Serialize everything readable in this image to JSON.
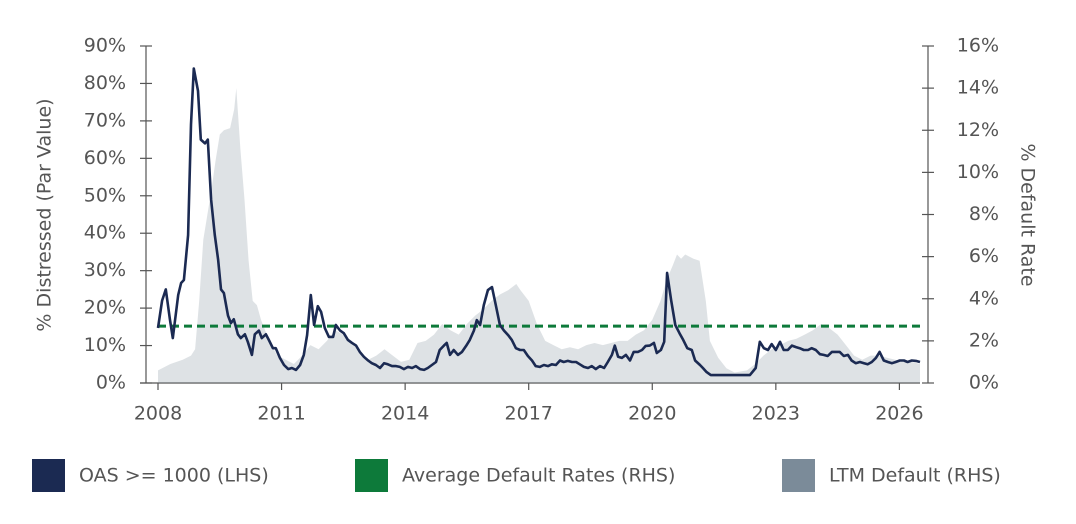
{
  "chart_data": {
    "type": "line",
    "ylabel": "% Distressed (Par Value)",
    "y2label": "% Default Rate",
    "xlim": [
      2008,
      2026.5
    ],
    "xticks": [
      2008,
      2011,
      2014,
      2017,
      2020,
      2023,
      2026
    ],
    "ylim": [
      0,
      90
    ],
    "yticks": [
      {
        "value": 0,
        "label": "0%"
      },
      {
        "value": 10,
        "label": "10%"
      },
      {
        "value": 20,
        "label": "20%"
      },
      {
        "value": 30,
        "label": "30%"
      },
      {
        "value": 40,
        "label": "40%"
      },
      {
        "value": 50,
        "label": "50%"
      },
      {
        "value": 60,
        "label": "60%"
      },
      {
        "value": 70,
        "label": "70%"
      },
      {
        "value": 80,
        "label": "80%"
      },
      {
        "value": 90,
        "label": "90%"
      }
    ],
    "y2lim": [
      0,
      16
    ],
    "y2ticks": [
      {
        "value": 0,
        "label": "0%"
      },
      {
        "value": 2,
        "label": "2%"
      },
      {
        "value": 4,
        "label": "4%"
      },
      {
        "value": 6,
        "label": "6%"
      },
      {
        "value": 8,
        "label": "8%"
      },
      {
        "value": 10,
        "label": "10%"
      },
      {
        "value": 12,
        "label": "12%"
      },
      {
        "value": 14,
        "label": "14%"
      },
      {
        "value": 16,
        "label": "16%"
      }
    ],
    "legend": "bottom",
    "series": [
      {
        "name": "OAS >= 1000 (LHS)",
        "color": "#1b2a52",
        "kind": "line",
        "x": [
          2008.0,
          2008.1,
          2008.19,
          2008.29,
          2008.36,
          2008.49,
          2008.56,
          2008.63,
          2008.73,
          2008.8,
          2008.87,
          2008.97,
          2009.04,
          2009.14,
          2009.21,
          2009.29,
          2009.38,
          2009.46,
          2009.53,
          2009.6,
          2009.7,
          2009.77,
          2009.84,
          2009.94,
          2010.01,
          2010.11,
          2010.18,
          2010.28,
          2010.35,
          2010.45,
          2010.52,
          2010.62,
          2010.69,
          2010.79,
          2010.86,
          2010.96,
          2011.06,
          2011.16,
          2011.25,
          2011.35,
          2011.45,
          2011.54,
          2011.62,
          2011.71,
          2011.79,
          2011.88,
          2011.96,
          2012.05,
          2012.15,
          2012.25,
          2012.32,
          2012.42,
          2012.51,
          2012.61,
          2012.71,
          2012.81,
          2012.9,
          2013.0,
          2013.1,
          2013.19,
          2013.29,
          2013.39,
          2013.49,
          2013.58,
          2013.68,
          2013.78,
          2013.87,
          2013.97,
          2014.07,
          2014.17,
          2014.26,
          2014.36,
          2014.46,
          2014.55,
          2014.65,
          2014.75,
          2014.84,
          2014.94,
          2015.01,
          2015.09,
          2015.18,
          2015.28,
          2015.38,
          2015.48,
          2015.57,
          2015.67,
          2015.74,
          2015.82,
          2015.91,
          2016.01,
          2016.11,
          2016.2,
          2016.3,
          2016.4,
          2016.5,
          2016.59,
          2016.69,
          2016.79,
          2016.88,
          2016.98,
          2017.08,
          2017.17,
          2017.27,
          2017.37,
          2017.47,
          2017.56,
          2017.66,
          2017.76,
          2017.85,
          2017.95,
          2018.05,
          2018.15,
          2018.24,
          2018.34,
          2018.44,
          2018.53,
          2018.63,
          2018.73,
          2018.83,
          2018.92,
          2019.02,
          2019.09,
          2019.17,
          2019.26,
          2019.36,
          2019.46,
          2019.55,
          2019.65,
          2019.75,
          2019.84,
          2019.94,
          2020.04,
          2020.11,
          2020.21,
          2020.29,
          2020.36,
          2020.46,
          2020.56,
          2020.66,
          2020.75,
          2020.85,
          2020.96,
          2021.04,
          2021.16,
          2021.23,
          2021.32,
          2021.42,
          2022.37,
          2022.51,
          2022.61,
          2022.71,
          2022.81,
          2022.9,
          2023.0,
          2023.1,
          2023.19,
          2023.29,
          2023.39,
          2023.49,
          2023.58,
          2023.68,
          2023.78,
          2023.87,
          2023.97,
          2024.07,
          2024.16,
          2024.26,
          2024.36,
          2024.46,
          2024.55,
          2024.65,
          2024.75,
          2024.84,
          2024.94,
          2025.04,
          2025.14,
          2025.23,
          2025.33,
          2025.43,
          2025.52,
          2025.62,
          2025.72,
          2025.82,
          2025.91,
          2026.01,
          2026.11,
          2026.2,
          2026.3,
          2026.4,
          2026.5
        ],
        "values": [
          14.7,
          22,
          25,
          17,
          12,
          23.5,
          26.7,
          27.5,
          39.5,
          69,
          84,
          78,
          65,
          64,
          65,
          49,
          39.5,
          33,
          25,
          24,
          18,
          16,
          17,
          13,
          12,
          13,
          11,
          7.5,
          13,
          14,
          12,
          13,
          11.5,
          9.3,
          9.3,
          6.7,
          4.8,
          3.7,
          4,
          3.5,
          4.8,
          7.5,
          12.8,
          23.5,
          15.5,
          20.5,
          19,
          14.7,
          12.3,
          12.3,
          15.5,
          14,
          13.3,
          11.5,
          10.7,
          10,
          8.3,
          7,
          6,
          5.3,
          4.8,
          4,
          5.3,
          5,
          4.5,
          4.5,
          4.3,
          3.7,
          4.3,
          4,
          4.5,
          3.7,
          3.5,
          4,
          4.8,
          5.6,
          8.8,
          10,
          10.7,
          7.5,
          8.8,
          7.5,
          8.3,
          9.9,
          11.5,
          14,
          16.8,
          15.5,
          20.8,
          24.8,
          25.6,
          20.8,
          15.5,
          14,
          12.8,
          11.5,
          9.3,
          8.8,
          8.8,
          7.2,
          6,
          4.5,
          4.3,
          4.8,
          4.5,
          5,
          4.8,
          6,
          5.6,
          5.9,
          5.6,
          5.6,
          5,
          4.3,
          4,
          4.5,
          3.7,
          4.5,
          4,
          5.6,
          7.5,
          10,
          7,
          6.7,
          7.5,
          6,
          8.3,
          8.3,
          8.8,
          9.9,
          10,
          10.7,
          8,
          8.8,
          11,
          29.4,
          22,
          15.5,
          13.3,
          11.5,
          9.3,
          8.8,
          6,
          4.8,
          4,
          2.9,
          2.1,
          2.1,
          4,
          11,
          9.3,
          8.8,
          10.4,
          8.8,
          11,
          8.8,
          8.8,
          10,
          9.6,
          9.3,
          8.8,
          8.8,
          9.3,
          8.8,
          7.7,
          7.5,
          7.2,
          8.3,
          8.3,
          8.3,
          7.2,
          7.5,
          6,
          5.3,
          5.6,
          5.3,
          5,
          5.6,
          6.7,
          8.3,
          6,
          5.6,
          5.3,
          5.6,
          6,
          6,
          5.6,
          6,
          5.9,
          5.6
        ]
      },
      {
        "name": "Average Default Rates (RHS)",
        "color": "#0d7a3a",
        "kind": "dashed",
        "axis": "y2",
        "x": [
          2008,
          2026.5
        ],
        "values": [
          2.7,
          2.7
        ]
      },
      {
        "name": "LTM Default (RHS)",
        "color": "#7b8b99",
        "kind": "area",
        "axis": "y2",
        "x": [
          2008.0,
          2008.3,
          2008.6,
          2008.8,
          2008.9,
          2009.0,
          2009.1,
          2009.2,
          2009.3,
          2009.4,
          2009.5,
          2009.6,
          2009.75,
          2009.85,
          2009.9,
          2010.0,
          2010.1,
          2010.2,
          2010.3,
          2010.4,
          2010.5,
          2010.7,
          2010.9,
          2011.1,
          2011.3,
          2011.5,
          2011.7,
          2011.9,
          2012.1,
          2012.3,
          2012.5,
          2012.7,
          2012.9,
          2013.1,
          2013.3,
          2013.5,
          2013.7,
          2013.9,
          2014.1,
          2014.3,
          2014.5,
          2014.7,
          2014.9,
          2015.1,
          2015.3,
          2015.5,
          2015.7,
          2015.9,
          2016.1,
          2016.3,
          2016.5,
          2016.7,
          2016.8,
          2017.0,
          2017.2,
          2017.4,
          2017.6,
          2017.8,
          2018.0,
          2018.2,
          2018.4,
          2018.6,
          2018.8,
          2019.0,
          2019.2,
          2019.4,
          2019.6,
          2019.8,
          2020.0,
          2020.2,
          2020.35,
          2020.5,
          2020.6,
          2020.7,
          2020.8,
          2021.0,
          2021.15,
          2021.3,
          2021.4,
          2021.6,
          2021.8,
          2022.0,
          2022.3,
          2022.5,
          2022.7,
          2022.9,
          2023.1,
          2023.3,
          2023.5,
          2023.7,
          2023.9,
          2024.1,
          2024.3,
          2024.5,
          2024.7,
          2024.9,
          2025.1,
          2025.3,
          2025.5,
          2025.7,
          2025.9,
          2026.1,
          2026.3,
          2026.5
        ],
        "values": [
          0.6,
          0.9,
          1.1,
          1.3,
          1.6,
          3.9,
          6.8,
          8.0,
          9.2,
          10.6,
          11.8,
          12.0,
          12.1,
          13.0,
          14.0,
          11.1,
          8.7,
          5.8,
          3.9,
          3.7,
          3.0,
          2.0,
          1.3,
          1.1,
          0.9,
          1.3,
          1.8,
          1.6,
          2.0,
          2.5,
          2.3,
          2.0,
          1.5,
          1.1,
          1.3,
          1.6,
          1.3,
          1.0,
          1.1,
          1.9,
          2.0,
          2.3,
          2.8,
          2.5,
          2.3,
          2.8,
          3.2,
          3.5,
          3.9,
          4.2,
          4.4,
          4.7,
          4.4,
          3.9,
          2.8,
          2.0,
          1.8,
          1.6,
          1.7,
          1.6,
          1.8,
          1.9,
          1.8,
          1.9,
          2.0,
          2.0,
          2.3,
          2.5,
          3.0,
          3.9,
          4.9,
          5.6,
          6.1,
          5.9,
          6.1,
          5.9,
          5.8,
          3.9,
          2.0,
          1.2,
          0.7,
          0.5,
          0.6,
          0.9,
          1.3,
          1.6,
          1.8,
          2.0,
          2.1,
          2.3,
          2.5,
          2.8,
          2.6,
          2.3,
          1.8,
          1.3,
          1.1,
          1.3,
          1.3,
          1.2,
          1.1,
          1.0,
          1.0,
          0.9
        ]
      }
    ]
  }
}
